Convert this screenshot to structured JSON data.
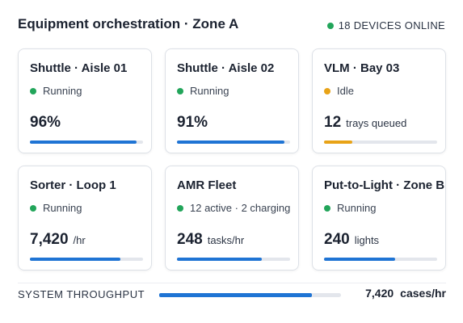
{
  "header": {
    "title": "Equipment orchestration · Zone A",
    "badge": "18 DEVICES ONLINE",
    "badge_color": "#22a55a"
  },
  "cards": [
    {
      "title": "Shuttle · Aisle 01",
      "status": "Running",
      "status_color": "#22a55a",
      "value": "96%",
      "progress": 94,
      "bar_color": "#1f74d4"
    },
    {
      "title": "Shuttle · Aisle 02",
      "status": "Running",
      "status_color": "#22a55a",
      "value": "91%",
      "progress": 95,
      "bar_color": "#1f74d4"
    },
    {
      "title": "VLM · Bay 03",
      "status": "Idle",
      "status_color": "#e8a317",
      "value": "12",
      "unit": "trays  queued",
      "progress": 25,
      "bar_color": "#e8a317"
    },
    {
      "title": "Sorter · Loop 1",
      "status": "Running",
      "status_color": "#22a55a",
      "value": "7,420",
      "unit": "/hr",
      "progress": 80,
      "bar_color": "#1f74d4"
    },
    {
      "title": "AMR Fleet",
      "status": "12 active · 2 charging",
      "status_color": "#22a55a",
      "value": "248",
      "unit": "tasks/hr",
      "progress": 75,
      "bar_color": "#1f74d4"
    },
    {
      "title": "Put-to-Light · Zone B",
      "status": "Running",
      "status_color": "#22a55a",
      "value": "240",
      "unit": "lights",
      "progress": 63,
      "bar_color": "#1f74d4"
    }
  ],
  "footer": {
    "label": "SYSTEM THROUGHPUT",
    "value": "7,420",
    "unit": "cases/hr",
    "progress": 84,
    "bar_color": "#1f74d4"
  }
}
